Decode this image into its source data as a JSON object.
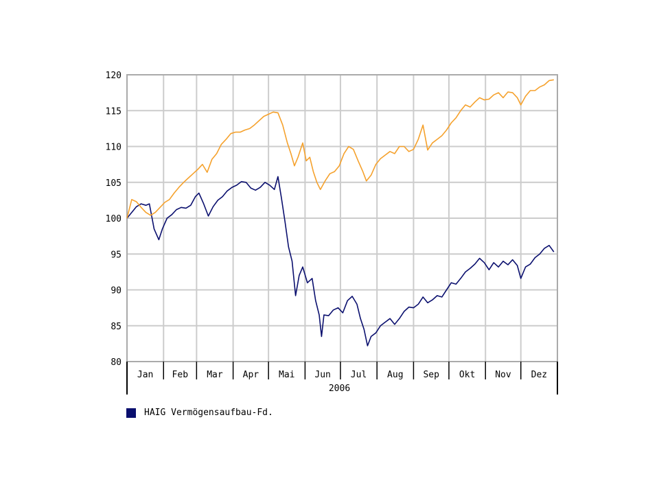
{
  "chart_data": {
    "type": "line",
    "title": "",
    "xlabel": "2006",
    "ylabel": "",
    "ylim": [
      80,
      120
    ],
    "yticks": [
      80,
      85,
      90,
      95,
      100,
      105,
      110,
      115,
      120
    ],
    "months": [
      "Jan",
      "Feb",
      "Mar",
      "Apr",
      "Mai",
      "Jun",
      "Jul",
      "Aug",
      "Sep",
      "Okt",
      "Nov",
      "Dez"
    ],
    "grid": true,
    "legend_position": "bottom-left",
    "series": [
      {
        "name": "HAIG Vermögensaufbau-Fd.",
        "color": "#0a0f6e",
        "points": [
          [
            "2006-01-01",
            100.0
          ],
          [
            "2006-01-05",
            100.8
          ],
          [
            "2006-01-09",
            101.6
          ],
          [
            "2006-01-13",
            102.0
          ],
          [
            "2006-01-17",
            101.8
          ],
          [
            "2006-01-20",
            102.0
          ],
          [
            "2006-01-24",
            98.5
          ],
          [
            "2006-01-28",
            97.0
          ],
          [
            "2006-01-31",
            98.5
          ],
          [
            "2006-02-04",
            100.0
          ],
          [
            "2006-02-08",
            100.5
          ],
          [
            "2006-02-12",
            101.2
          ],
          [
            "2006-02-16",
            101.5
          ],
          [
            "2006-02-20",
            101.4
          ],
          [
            "2006-02-24",
            101.8
          ],
          [
            "2006-02-28",
            103.0
          ],
          [
            "2006-03-03",
            103.5
          ],
          [
            "2006-03-07",
            102.0
          ],
          [
            "2006-03-11",
            100.3
          ],
          [
            "2006-03-15",
            101.6
          ],
          [
            "2006-03-19",
            102.5
          ],
          [
            "2006-03-23",
            103.0
          ],
          [
            "2006-03-27",
            103.8
          ],
          [
            "2006-03-31",
            104.3
          ],
          [
            "2006-04-04",
            104.6
          ],
          [
            "2006-04-08",
            105.1
          ],
          [
            "2006-04-12",
            105.0
          ],
          [
            "2006-04-16",
            104.2
          ],
          [
            "2006-04-20",
            103.9
          ],
          [
            "2006-04-24",
            104.3
          ],
          [
            "2006-04-28",
            105.0
          ],
          [
            "2006-05-02",
            104.6
          ],
          [
            "2006-05-06",
            104.0
          ],
          [
            "2006-05-09",
            105.8
          ],
          [
            "2006-05-12",
            102.8
          ],
          [
            "2006-05-15",
            99.5
          ],
          [
            "2006-05-18",
            96.0
          ],
          [
            "2006-05-21",
            94.0
          ],
          [
            "2006-05-24",
            89.2
          ],
          [
            "2006-05-27",
            92.0
          ],
          [
            "2006-05-30",
            93.2
          ],
          [
            "2006-06-03",
            91.0
          ],
          [
            "2006-06-07",
            91.6
          ],
          [
            "2006-06-10",
            88.5
          ],
          [
            "2006-06-13",
            86.5
          ],
          [
            "2006-06-15",
            83.5
          ],
          [
            "2006-06-17",
            86.5
          ],
          [
            "2006-06-21",
            86.4
          ],
          [
            "2006-06-25",
            87.2
          ],
          [
            "2006-06-29",
            87.5
          ],
          [
            "2006-07-03",
            86.8
          ],
          [
            "2006-07-07",
            88.5
          ],
          [
            "2006-07-11",
            89.1
          ],
          [
            "2006-07-15",
            88.0
          ],
          [
            "2006-07-18",
            86.0
          ],
          [
            "2006-07-21",
            84.5
          ],
          [
            "2006-07-24",
            82.2
          ],
          [
            "2006-07-27",
            83.5
          ],
          [
            "2006-07-31",
            84.0
          ],
          [
            "2006-08-04",
            85.0
          ],
          [
            "2006-08-08",
            85.5
          ],
          [
            "2006-08-12",
            86.0
          ],
          [
            "2006-08-16",
            85.2
          ],
          [
            "2006-08-20",
            86.0
          ],
          [
            "2006-08-24",
            87.0
          ],
          [
            "2006-08-28",
            87.6
          ],
          [
            "2006-09-01",
            87.5
          ],
          [
            "2006-09-05",
            88.0
          ],
          [
            "2006-09-09",
            89.0
          ],
          [
            "2006-09-13",
            88.2
          ],
          [
            "2006-09-17",
            88.6
          ],
          [
            "2006-09-21",
            89.2
          ],
          [
            "2006-09-25",
            89.0
          ],
          [
            "2006-09-29",
            90.0
          ],
          [
            "2006-10-03",
            91.0
          ],
          [
            "2006-10-07",
            90.8
          ],
          [
            "2006-10-11",
            91.6
          ],
          [
            "2006-10-15",
            92.5
          ],
          [
            "2006-10-19",
            93.0
          ],
          [
            "2006-10-23",
            93.6
          ],
          [
            "2006-10-27",
            94.4
          ],
          [
            "2006-10-31",
            93.8
          ],
          [
            "2006-11-04",
            92.8
          ],
          [
            "2006-11-08",
            93.8
          ],
          [
            "2006-11-12",
            93.2
          ],
          [
            "2006-11-16",
            94.0
          ],
          [
            "2006-11-20",
            93.5
          ],
          [
            "2006-11-24",
            94.2
          ],
          [
            "2006-11-28",
            93.4
          ],
          [
            "2006-12-01",
            91.6
          ],
          [
            "2006-12-05",
            93.2
          ],
          [
            "2006-12-09",
            93.6
          ],
          [
            "2006-12-13",
            94.5
          ],
          [
            "2006-12-17",
            95.0
          ],
          [
            "2006-12-21",
            95.8
          ],
          [
            "2006-12-25",
            96.2
          ],
          [
            "2006-12-29",
            95.3
          ]
        ]
      },
      {
        "color": "#f5a12c",
        "points": [
          [
            "2006-01-01",
            100.0
          ],
          [
            "2006-01-05",
            102.6
          ],
          [
            "2006-01-09",
            102.3
          ],
          [
            "2006-01-13",
            101.5
          ],
          [
            "2006-01-17",
            100.8
          ],
          [
            "2006-01-21",
            100.4
          ],
          [
            "2006-01-25",
            100.8
          ],
          [
            "2006-01-29",
            101.5
          ],
          [
            "2006-02-02",
            102.2
          ],
          [
            "2006-02-06",
            102.6
          ],
          [
            "2006-02-10",
            103.5
          ],
          [
            "2006-02-14",
            104.3
          ],
          [
            "2006-02-18",
            105.0
          ],
          [
            "2006-02-22",
            105.6
          ],
          [
            "2006-02-26",
            106.2
          ],
          [
            "2006-03-02",
            106.8
          ],
          [
            "2006-03-06",
            107.5
          ],
          [
            "2006-03-10",
            106.4
          ],
          [
            "2006-03-14",
            108.2
          ],
          [
            "2006-03-18",
            109.0
          ],
          [
            "2006-03-22",
            110.3
          ],
          [
            "2006-03-26",
            111.0
          ],
          [
            "2006-03-30",
            111.8
          ],
          [
            "2006-04-03",
            112.0
          ],
          [
            "2006-04-07",
            112.0
          ],
          [
            "2006-04-11",
            112.3
          ],
          [
            "2006-04-15",
            112.5
          ],
          [
            "2006-04-19",
            113.0
          ],
          [
            "2006-04-23",
            113.6
          ],
          [
            "2006-04-27",
            114.2
          ],
          [
            "2006-05-01",
            114.5
          ],
          [
            "2006-05-05",
            114.8
          ],
          [
            "2006-05-09",
            114.7
          ],
          [
            "2006-05-13",
            113.0
          ],
          [
            "2006-05-17",
            110.5
          ],
          [
            "2006-05-20",
            109.0
          ],
          [
            "2006-05-23",
            107.3
          ],
          [
            "2006-05-26",
            108.5
          ],
          [
            "2006-05-30",
            110.5
          ],
          [
            "2006-06-02",
            108.0
          ],
          [
            "2006-06-05",
            108.5
          ],
          [
            "2006-06-08",
            106.5
          ],
          [
            "2006-06-11",
            105.0
          ],
          [
            "2006-06-14",
            104.0
          ],
          [
            "2006-06-18",
            105.2
          ],
          [
            "2006-06-22",
            106.2
          ],
          [
            "2006-06-26",
            106.5
          ],
          [
            "2006-06-30",
            107.3
          ],
          [
            "2006-07-04",
            109.0
          ],
          [
            "2006-07-08",
            110.0
          ],
          [
            "2006-07-12",
            109.6
          ],
          [
            "2006-07-16",
            108.0
          ],
          [
            "2006-07-20",
            106.5
          ],
          [
            "2006-07-23",
            105.2
          ],
          [
            "2006-07-27",
            106.0
          ],
          [
            "2006-07-31",
            107.5
          ],
          [
            "2006-08-04",
            108.3
          ],
          [
            "2006-08-08",
            108.8
          ],
          [
            "2006-08-12",
            109.3
          ],
          [
            "2006-08-16",
            109.0
          ],
          [
            "2006-08-20",
            110.0
          ],
          [
            "2006-08-24",
            110.0
          ],
          [
            "2006-08-28",
            109.3
          ],
          [
            "2006-09-01",
            109.6
          ],
          [
            "2006-09-05",
            111.0
          ],
          [
            "2006-09-09",
            113.0
          ],
          [
            "2006-09-13",
            109.5
          ],
          [
            "2006-09-17",
            110.5
          ],
          [
            "2006-09-21",
            111.0
          ],
          [
            "2006-09-25",
            111.5
          ],
          [
            "2006-09-29",
            112.3
          ],
          [
            "2006-10-03",
            113.3
          ],
          [
            "2006-10-07",
            114.0
          ],
          [
            "2006-10-11",
            115.0
          ],
          [
            "2006-10-15",
            115.8
          ],
          [
            "2006-10-19",
            115.5
          ],
          [
            "2006-10-23",
            116.2
          ],
          [
            "2006-10-27",
            116.8
          ],
          [
            "2006-10-31",
            116.5
          ],
          [
            "2006-11-04",
            116.6
          ],
          [
            "2006-11-08",
            117.2
          ],
          [
            "2006-11-12",
            117.5
          ],
          [
            "2006-11-16",
            116.8
          ],
          [
            "2006-11-20",
            117.6
          ],
          [
            "2006-11-24",
            117.5
          ],
          [
            "2006-11-28",
            116.8
          ],
          [
            "2006-12-01",
            115.8
          ],
          [
            "2006-12-05",
            117.0
          ],
          [
            "2006-12-09",
            117.8
          ],
          [
            "2006-12-13",
            117.8
          ],
          [
            "2006-12-17",
            118.3
          ],
          [
            "2006-12-21",
            118.6
          ],
          [
            "2006-12-25",
            119.2
          ],
          [
            "2006-12-29",
            119.3
          ]
        ]
      }
    ]
  },
  "legend": {
    "label": "HAIG Vermögensaufbau-Fd.",
    "color": "#0a0f6e"
  }
}
